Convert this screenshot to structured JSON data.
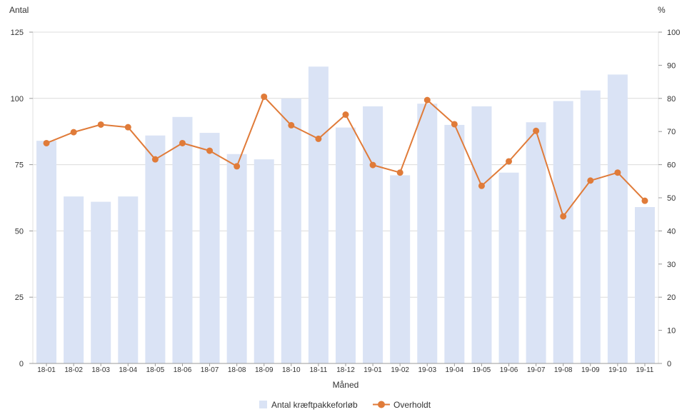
{
  "chart_data": {
    "type": "bar",
    "title": "",
    "xlabel": "Måned",
    "ylabel_left": "Antal",
    "ylabel_right": "%",
    "ylim_left": [
      0,
      125
    ],
    "ylim_right": [
      0,
      100
    ],
    "yticks_left": [
      "0",
      "25",
      "50",
      "75",
      "100",
      "125"
    ],
    "yticks_right": [
      "0",
      "10",
      "20",
      "30",
      "40",
      "50",
      "60",
      "70",
      "80",
      "90",
      "100"
    ],
    "grid": true,
    "legend_position": "bottom-center",
    "categories": [
      "18-01",
      "18-02",
      "18-03",
      "18-04",
      "18-05",
      "18-06",
      "18-07",
      "18-08",
      "18-09",
      "18-10",
      "18-11",
      "18-12",
      "19-01",
      "19-02",
      "19-03",
      "19-04",
      "19-05",
      "19-06",
      "19-07",
      "19-08",
      "19-09",
      "19-10",
      "19-11"
    ],
    "series": [
      {
        "name": "Antal kræftpakkeforløb",
        "type": "bar",
        "axis": "left",
        "color": "#dae3f5",
        "values": [
          84,
          63,
          61,
          63,
          86,
          93,
          87,
          79,
          77,
          100,
          112,
          89,
          97,
          71,
          98,
          90,
          97,
          72,
          91,
          99,
          103,
          109,
          59
        ]
      },
      {
        "name": "Overholdt",
        "type": "line",
        "axis": "right",
        "color": "#e07b39",
        "values": [
          66.5,
          69.8,
          72.1,
          71.3,
          61.6,
          66.5,
          64.2,
          59.5,
          80.5,
          71.9,
          67.8,
          75.1,
          59.9,
          57.6,
          79.5,
          72.2,
          53.6,
          61.0,
          70.2,
          44.4,
          55.2,
          57.6,
          49.1
        ]
      }
    ]
  }
}
